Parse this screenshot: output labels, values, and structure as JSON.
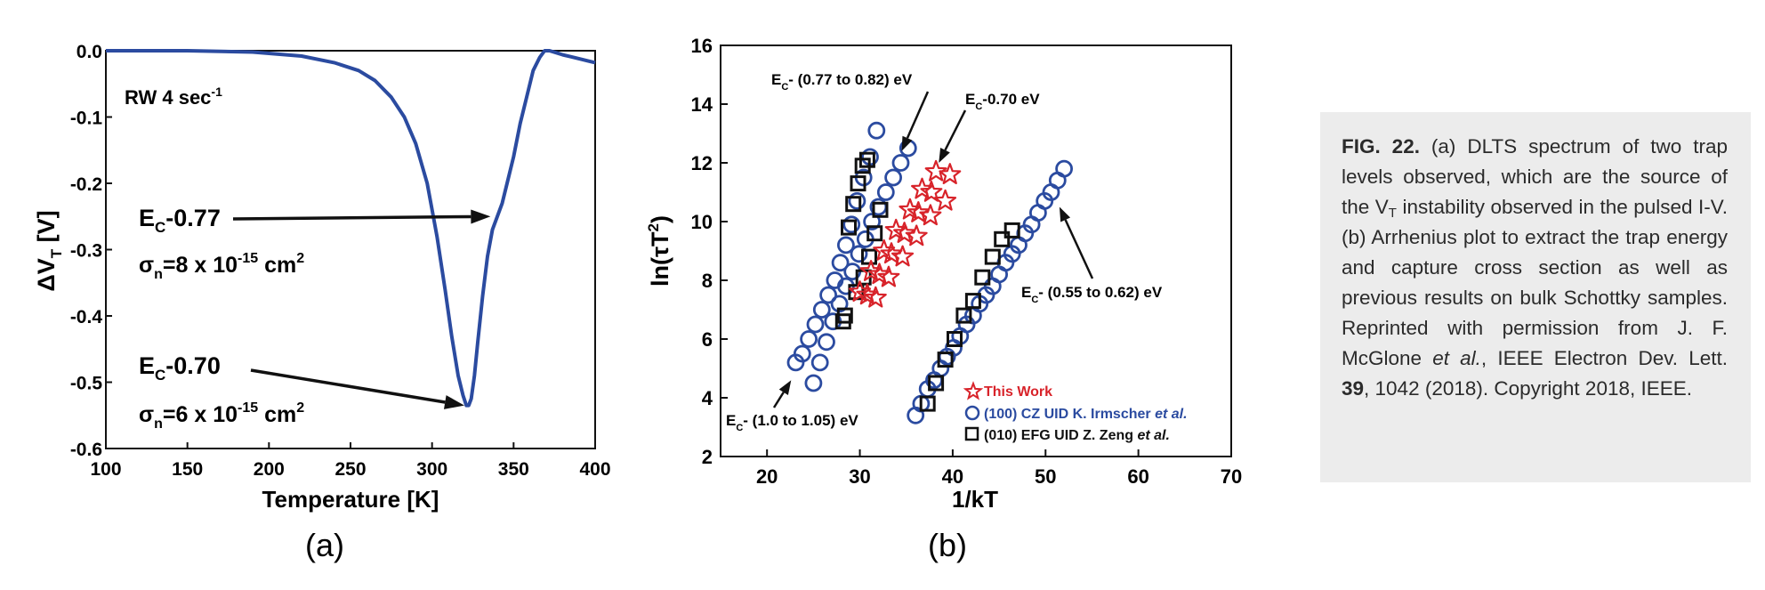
{
  "chart_data": [
    {
      "type": "line",
      "panel_label": "(a)",
      "xlabel": "Temperature [K]",
      "ylabel": "ΔV",
      "ylabel_sub": "T",
      "ylabel_unit": "[V]",
      "xlim": [
        100,
        400
      ],
      "ylim": [
        -0.6,
        0.0
      ],
      "x_ticks": [
        100,
        150,
        200,
        250,
        300,
        350,
        400
      ],
      "y_ticks": [
        "0.0",
        "-0.1",
        "-0.2",
        "-0.3",
        "-0.4",
        "-0.5",
        "-0.6"
      ],
      "series": [
        {
          "name": "DLTS spectrum",
          "color": "#2b4ba0",
          "x": [
            100,
            150,
            190,
            220,
            240,
            255,
            265,
            275,
            283,
            290,
            297,
            303,
            308,
            312,
            316,
            319,
            321,
            322.5,
            324,
            326,
            328,
            331,
            334,
            337,
            340,
            343,
            346,
            350,
            354,
            358,
            362,
            366,
            369,
            372,
            376,
            380,
            385,
            390,
            395,
            400
          ],
          "y": [
            0.0,
            0.0,
            -0.002,
            -0.008,
            -0.018,
            -0.03,
            -0.045,
            -0.07,
            -0.1,
            -0.14,
            -0.2,
            -0.28,
            -0.36,
            -0.43,
            -0.49,
            -0.52,
            -0.535,
            -0.535,
            -0.525,
            -0.49,
            -0.44,
            -0.37,
            -0.31,
            -0.27,
            -0.25,
            -0.23,
            -0.2,
            -0.16,
            -0.11,
            -0.07,
            -0.03,
            -0.01,
            0.0,
            0.0,
            -0.003,
            -0.006,
            -0.009,
            -0.012,
            -0.015,
            -0.018
          ]
        }
      ],
      "annotations": {
        "rate": "RW 4 sec",
        "rate_sup": "-1",
        "trap1_prefix": "E",
        "trap1_sub": "C",
        "trap1_level": "-0.77",
        "trap1_sigma_symbol": "σ",
        "trap1_sigma_sub": "n",
        "trap1_sigma_value": "=8 x 10",
        "trap1_sigma_exp": "-15",
        "trap1_sigma_unit": " cm",
        "trap1_sigma_unit_exp": "2",
        "trap1_target": {
          "x": 338,
          "y": -0.25
        },
        "trap2_prefix": "E",
        "trap2_sub": "C",
        "trap2_level": "-0.70",
        "trap2_sigma_symbol": "σ",
        "trap2_sigma_sub": "n",
        "trap2_sigma_value": "=6 x 10",
        "trap2_sigma_exp": "-15",
        "trap2_sigma_unit": " cm",
        "trap2_sigma_unit_exp": "2",
        "trap2_target": {
          "x": 322,
          "y": -0.535
        }
      }
    },
    {
      "type": "scatter",
      "panel_label": "(b)",
      "xlabel": "1/kT",
      "ylabel": "ln(τT",
      "ylabel_sup": "2",
      "ylabel_close": ")",
      "xlim": [
        15,
        70
      ],
      "ylim": [
        2,
        16
      ],
      "x_ticks": [
        20,
        30,
        40,
        50,
        60,
        70
      ],
      "y_ticks": [
        2,
        4,
        6,
        8,
        10,
        12,
        14,
        16
      ],
      "legend": [
        {
          "marker": "star",
          "color": "#d8232a",
          "label": "This Work"
        },
        {
          "marker": "circle",
          "color": "#2b4ba0",
          "label": "(100) CZ UID K. Irmscher ",
          "label_italic": "et al."
        },
        {
          "marker": "square",
          "color": "#111111",
          "label": "(010) EFG UID Z. Zeng ",
          "label_italic": "et al."
        }
      ],
      "series": [
        {
          "name": "This Work",
          "marker": "star",
          "color": "#d8232a",
          "x": [
            30.0,
            31.2,
            32.6,
            33.9,
            35.4,
            36.7,
            38.2,
            39.7,
            30.8,
            32.1,
            33.4,
            34.8,
            36.3,
            37.7,
            39.2,
            31.7,
            33.1,
            34.6,
            36.1,
            37.6
          ],
          "y": [
            7.6,
            8.3,
            9.0,
            9.7,
            10.4,
            11.1,
            11.7,
            11.6,
            7.5,
            8.2,
            8.9,
            9.6,
            10.3,
            11.0,
            10.7,
            7.4,
            8.1,
            8.8,
            9.5,
            10.2
          ]
        },
        {
          "name": "(100) CZ UID K. Irmscher et al.",
          "marker": "circle",
          "color": "#2b4ba0",
          "x": [
            23.1,
            23.8,
            24.5,
            25.2,
            25.9,
            26.6,
            27.3,
            27.9,
            28.5,
            29.1,
            29.7,
            30.4,
            31.1,
            31.8,
            25.0,
            25.7,
            26.4,
            27.1,
            27.8,
            28.5,
            29.2,
            29.9,
            30.6,
            31.3,
            32.0,
            32.8,
            33.6,
            34.4,
            35.2,
            36.0,
            36.6,
            37.3,
            38.0,
            38.7,
            39.4,
            40.1,
            40.8,
            41.5,
            42.2,
            42.9,
            43.6,
            44.3,
            45.0,
            45.7,
            46.4,
            47.1,
            47.8,
            48.5,
            49.2,
            49.9,
            50.6,
            51.3,
            52.0
          ],
          "y": [
            5.2,
            5.5,
            6.0,
            6.5,
            7.0,
            7.5,
            8.0,
            8.6,
            9.2,
            9.9,
            10.7,
            11.5,
            12.2,
            13.1,
            4.5,
            5.2,
            5.9,
            6.6,
            7.2,
            7.8,
            8.3,
            8.9,
            9.4,
            10.0,
            10.5,
            11.0,
            11.5,
            12.0,
            12.5,
            3.4,
            3.8,
            4.3,
            4.6,
            5.0,
            5.4,
            5.7,
            6.1,
            6.5,
            6.8,
            7.2,
            7.5,
            7.8,
            8.2,
            8.6,
            8.9,
            9.2,
            9.6,
            9.9,
            10.3,
            10.7,
            11.0,
            11.4,
            11.8
          ]
        },
        {
          "name": "(010) EFG UID Z. Zeng et al.",
          "marker": "square",
          "color": "#111111",
          "x": [
            28.2,
            28.8,
            29.3,
            29.8,
            30.3,
            30.8,
            28.4,
            29.6,
            30.4,
            31.0,
            31.6,
            32.2,
            37.3,
            38.2,
            39.2,
            40.2,
            41.2,
            42.2,
            43.2,
            44.3,
            45.3,
            46.4
          ],
          "y": [
            6.6,
            9.8,
            10.6,
            11.3,
            11.9,
            12.1,
            6.8,
            7.6,
            8.1,
            8.8,
            9.6,
            10.4,
            3.8,
            4.5,
            5.3,
            6.0,
            6.8,
            7.3,
            8.1,
            8.8,
            9.4,
            9.7
          ]
        }
      ],
      "annotations": {
        "a1_prefix": "E",
        "a1_sub": "C",
        "a1_text": "- (0.77 to 0.82) eV",
        "a1_target": {
          "x": 34.5,
          "y": 12.4
        },
        "a2_prefix": "E",
        "a2_sub": "C",
        "a2_text": "-0.70 eV",
        "a2_target": {
          "x": 38.5,
          "y": 12.0
        },
        "a3_prefix": "E",
        "a3_sub": "C",
        "a3_text": "- (0.55 to 0.62) eV",
        "a3_target": {
          "x": 51.5,
          "y": 10.5
        },
        "a4_prefix": "E",
        "a4_sub": "C",
        "a4_text": "- (1.0 to 1.05) eV",
        "a4_target": {
          "x": 22.6,
          "y": 4.6
        }
      }
    }
  ],
  "caption": {
    "fig_label": "FIG. 22.",
    "text1": " (a) DLTS spectrum of two trap levels observed, which are the source of the V",
    "vt_sub": "T",
    "text2": " instability observed in the pulsed I-V. (b) Arrhenius plot to extract the trap energy and capture cross section as well as previous results on bulk Schottky samples. Reprinted with permission from J. F. McGlone ",
    "etal": "et al.",
    "text3": ", IEEE Electron Dev. Lett. ",
    "volume": "39",
    "text4": ", 1042 (2018). Copyright 2018, IEEE."
  }
}
